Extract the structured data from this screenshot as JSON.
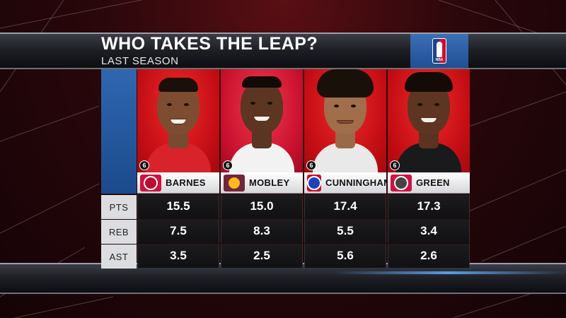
{
  "graphic": {
    "title": "WHO TAKES THE LEAP?",
    "subtitle": "LAST SEASON",
    "league_logo": "nba-logo"
  },
  "stat_labels": [
    "PTS",
    "REB",
    "AST"
  ],
  "players": [
    {
      "name": "BARNES",
      "number_badge": "6",
      "team_logo": "raptors-logo-icon",
      "team_color": "#ce1141",
      "stats": {
        "pts": "15.5",
        "reb": "7.5",
        "ast": "3.5"
      }
    },
    {
      "name": "MOBLEY",
      "number_badge": "6",
      "team_logo": "cavaliers-logo-icon",
      "team_color": "#6f263d",
      "stats": {
        "pts": "15.0",
        "reb": "8.3",
        "ast": "2.5"
      }
    },
    {
      "name": "CUNNINGHAM",
      "number_badge": "6",
      "team_logo": "pistons-logo-icon",
      "team_color": "#c8102e",
      "stats": {
        "pts": "17.4",
        "reb": "5.5",
        "ast": "5.6"
      }
    },
    {
      "name": "GREEN",
      "number_badge": "6",
      "team_logo": "rockets-logo-icon",
      "team_color": "#ce1141",
      "stats": {
        "pts": "17.3",
        "reb": "3.4",
        "ast": "2.6"
      }
    }
  ],
  "colors": {
    "header_blue": "#2f67b0",
    "photo_red": "#c20d14",
    "stat_bg": "#111113"
  }
}
